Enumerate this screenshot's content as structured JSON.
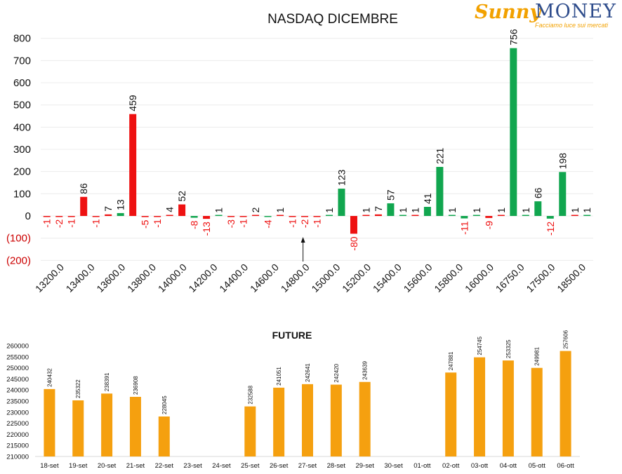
{
  "logo": {
    "brand_sunny": "Sunny",
    "brand_money": "MONEY",
    "tagline": "Facciamo luce sui mercati"
  },
  "colors": {
    "positive": "#11a64f",
    "negative": "#ee1111",
    "future": "#f5a00f",
    "axis_negative_text": "#cc0000"
  },
  "chart_data": [
    {
      "type": "bar",
      "title": "NASDAQ DICEMBRE",
      "xlabel": "",
      "ylabel": "",
      "ylim": [
        -200,
        800
      ],
      "yticks": [
        "800",
        "700",
        "600",
        "500",
        "400",
        "300",
        "200",
        "100",
        "0",
        "(100)",
        "(200)"
      ],
      "ytick_values": [
        800,
        700,
        600,
        500,
        400,
        300,
        200,
        100,
        0,
        -100,
        -200
      ],
      "x_tick_labels": [
        "13200.0",
        "13400.0",
        "13600.0",
        "13800.0",
        "14000.0",
        "14200.0",
        "14400.0",
        "14600.0",
        "14800.0",
        "15000.0",
        "15200.0",
        "15400.0",
        "15600.0",
        "15800.0",
        "16000.0",
        "16750.0",
        "17500.0",
        "18500.0"
      ],
      "grid": true,
      "annotation": {
        "type": "arrow",
        "points_to_label": "14800.0"
      },
      "bars": [
        {
          "v": -1,
          "c": "neg"
        },
        {
          "v": -2,
          "c": "neg"
        },
        {
          "v": -1,
          "c": "neg"
        },
        {
          "v": 86,
          "c": "neg"
        },
        {
          "v": -1,
          "c": "neg"
        },
        {
          "v": 7,
          "c": "neg"
        },
        {
          "v": 13,
          "c": "pos"
        },
        {
          "v": 459,
          "c": "neg"
        },
        {
          "v": -5,
          "c": "neg"
        },
        {
          "v": -1,
          "c": "neg"
        },
        {
          "v": 4,
          "c": "neg"
        },
        {
          "v": 52,
          "c": "neg"
        },
        {
          "v": -8,
          "c": "pos"
        },
        {
          "v": -13,
          "c": "neg"
        },
        {
          "v": 1,
          "c": "pos"
        },
        {
          "v": -3,
          "c": "neg"
        },
        {
          "v": -1,
          "c": "neg"
        },
        {
          "v": 2,
          "c": "neg"
        },
        {
          "v": -4,
          "c": "pos"
        },
        {
          "v": 1,
          "c": "neg"
        },
        {
          "v": -1,
          "c": "neg"
        },
        {
          "v": -2,
          "c": "neg"
        },
        {
          "v": -1,
          "c": "neg"
        },
        {
          "v": 1,
          "c": "pos"
        },
        {
          "v": 123,
          "c": "pos"
        },
        {
          "v": -80,
          "c": "neg"
        },
        {
          "v": 1,
          "c": "neg"
        },
        {
          "v": 7,
          "c": "neg"
        },
        {
          "v": 57,
          "c": "pos"
        },
        {
          "v": 1,
          "c": "pos"
        },
        {
          "v": 1,
          "c": "neg"
        },
        {
          "v": 41,
          "c": "pos"
        },
        {
          "v": 221,
          "c": "pos"
        },
        {
          "v": 1,
          "c": "pos"
        },
        {
          "v": -11,
          "c": "pos"
        },
        {
          "v": 1,
          "c": "pos"
        },
        {
          "v": -9,
          "c": "neg"
        },
        {
          "v": 1,
          "c": "neg"
        },
        {
          "v": 756,
          "c": "pos"
        },
        {
          "v": 1,
          "c": "pos"
        },
        {
          "v": 66,
          "c": "pos"
        },
        {
          "v": -12,
          "c": "pos"
        },
        {
          "v": 198,
          "c": "pos"
        },
        {
          "v": 1,
          "c": "neg"
        },
        {
          "v": 1,
          "c": "pos"
        }
      ]
    },
    {
      "type": "bar",
      "title": "FUTURE",
      "xlabel": "",
      "ylabel": "",
      "ylim": [
        210000,
        260000
      ],
      "yticks": [
        "260000",
        "255000",
        "250000",
        "245000",
        "240000",
        "235000",
        "230000",
        "225000",
        "220000",
        "215000",
        "210000"
      ],
      "ytick_values": [
        260000,
        255000,
        250000,
        245000,
        240000,
        235000,
        230000,
        225000,
        220000,
        215000,
        210000
      ],
      "grid": false,
      "categories": [
        "18-set",
        "19-set",
        "20-set",
        "21-set",
        "22-set",
        "23-set",
        "24-set",
        "25-set",
        "26-set",
        "27-set",
        "28-set",
        "29-set",
        "30-set",
        "01-ott",
        "02-ott",
        "03-ott",
        "04-ott",
        "05-ott",
        "06-ott"
      ],
      "values": [
        240432,
        235322,
        238391,
        236908,
        228045,
        null,
        null,
        232588,
        241051,
        242641,
        242420,
        243639,
        null,
        null,
        247881,
        254745,
        253325,
        249981,
        257606
      ],
      "value_labels": [
        "240432",
        "235322",
        "238391",
        "236908",
        "228045",
        "",
        "",
        "232588",
        "241051",
        "242641",
        "242420",
        "243639",
        "",
        "",
        "247881",
        "254745",
        "253325",
        "249981",
        "257606"
      ]
    }
  ]
}
